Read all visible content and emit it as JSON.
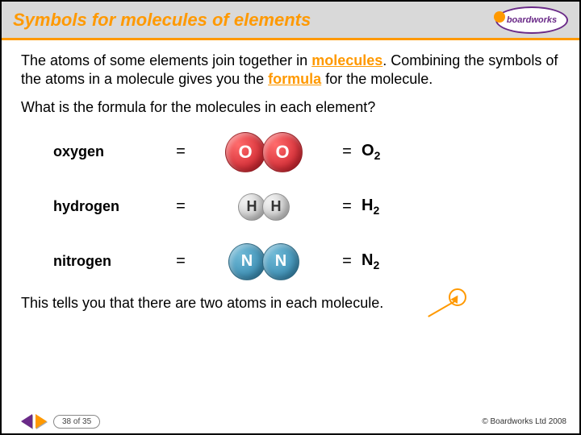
{
  "header": {
    "title": "Symbols for molecules of elements",
    "logo": "boardworks"
  },
  "intro": {
    "p1a": "The atoms of some elements join together in ",
    "kw1": "molecules",
    "p1b": ". Combining the symbols of the atoms in a molecule gives you the ",
    "kw2": "formula",
    "p1c": " for the molecule."
  },
  "question": "What is the formula for the molecules in each element?",
  "rows": [
    {
      "name": "oxygen",
      "atom_label": "O",
      "color": "red",
      "size": "big",
      "formula": "O",
      "sub": "2"
    },
    {
      "name": "hydrogen",
      "atom_label": "H",
      "color": "gray",
      "size": "small",
      "formula": "H",
      "sub": "2"
    },
    {
      "name": "nitrogen",
      "atom_label": "N",
      "color": "blue",
      "size": "med",
      "formula": "N",
      "sub": "2"
    }
  ],
  "eq": "=",
  "note": "This tells you that there are two atoms in each molecule.",
  "footer": {
    "page": "38 of 35",
    "copyright": "© Boardworks Ltd 2008"
  }
}
